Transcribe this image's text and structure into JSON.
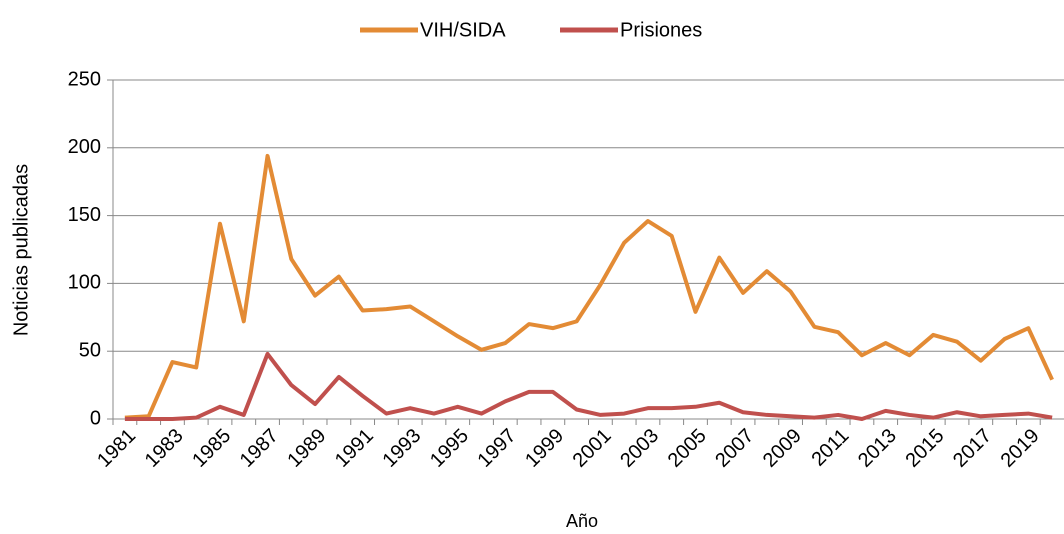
{
  "chart_data": {
    "type": "line",
    "x_label": "Año",
    "y_label": "Noticias publicadas",
    "categories": [
      "1981",
      null,
      "1983",
      null,
      "1985",
      null,
      "1987",
      null,
      "1989",
      null,
      "1991",
      null,
      "1993",
      null,
      "1995",
      null,
      "1997",
      null,
      "1999",
      null,
      "2001",
      null,
      "2003",
      null,
      "2005",
      null,
      "2007",
      null,
      "2009",
      null,
      "2011",
      null,
      "2013",
      null,
      "2015",
      null,
      "2017",
      null,
      "2019",
      null
    ],
    "series": [
      {
        "name": "VIH/SIDA",
        "color": "#e38b35",
        "values": [
          1,
          2,
          42,
          38,
          144,
          72,
          194,
          118,
          91,
          105,
          80,
          81,
          83,
          72,
          61,
          51,
          56,
          70,
          67,
          72,
          99,
          130,
          146,
          135,
          79,
          119,
          93,
          109,
          94,
          68,
          64,
          47,
          56,
          47,
          62,
          57,
          43,
          59,
          67,
          29
        ]
      },
      {
        "name": "Prisiones",
        "color": "#c0504d",
        "values": [
          0,
          0,
          0,
          1,
          9,
          3,
          48,
          25,
          11,
          31,
          17,
          4,
          8,
          4,
          9,
          4,
          13,
          20,
          20,
          7,
          3,
          4,
          8,
          8,
          9,
          12,
          5,
          3,
          2,
          1,
          3,
          0,
          6,
          3,
          1,
          5,
          2,
          3,
          4,
          1
        ]
      }
    ],
    "ylim": [
      0,
      250
    ],
    "yticks": [
      0,
      50,
      100,
      150,
      200,
      250
    ],
    "grid": true,
    "legend": "top"
  }
}
